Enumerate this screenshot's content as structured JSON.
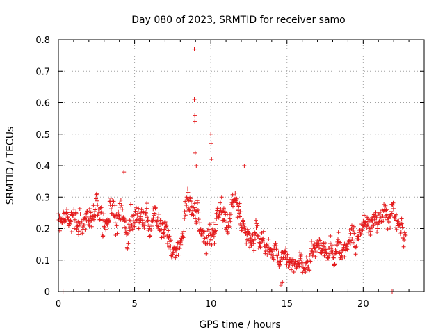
{
  "chart_data": {
    "type": "scatter",
    "title": "Day 080 of 2023, SRMTID for receiver samo",
    "xlabel": "GPS time / hours",
    "ylabel": "SRMTID / TECUs",
    "xlim": [
      0,
      24
    ],
    "ylim": [
      0,
      0.8
    ],
    "xticks": [
      0,
      5,
      10,
      15,
      20
    ],
    "yticks": [
      0,
      0.1,
      0.2,
      0.3,
      0.4,
      0.5,
      0.6,
      0.7,
      0.8
    ],
    "grid": true,
    "marker": "+",
    "color": "#e41a1c",
    "series": [
      {
        "name": "SRMTID",
        "trend": [
          [
            0.0,
            0.22,
            0.05
          ],
          [
            0.5,
            0.24,
            0.05
          ],
          [
            1.0,
            0.25,
            0.05
          ],
          [
            1.5,
            0.22,
            0.06
          ],
          [
            2.0,
            0.2,
            0.05
          ],
          [
            2.5,
            0.24,
            0.06
          ],
          [
            3.0,
            0.22,
            0.07
          ],
          [
            3.5,
            0.26,
            0.06
          ],
          [
            4.0,
            0.27,
            0.06
          ],
          [
            4.5,
            0.18,
            0.07
          ],
          [
            5.0,
            0.26,
            0.05
          ],
          [
            5.5,
            0.22,
            0.06
          ],
          [
            6.0,
            0.21,
            0.05
          ],
          [
            6.5,
            0.24,
            0.06
          ],
          [
            7.0,
            0.17,
            0.06
          ],
          [
            7.5,
            0.15,
            0.05
          ],
          [
            8.0,
            0.14,
            0.05
          ],
          [
            8.5,
            0.26,
            0.06
          ],
          [
            9.0,
            0.25,
            0.07
          ],
          [
            9.5,
            0.15,
            0.05
          ],
          [
            10.0,
            0.2,
            0.07
          ],
          [
            10.5,
            0.24,
            0.06
          ],
          [
            11.0,
            0.19,
            0.06
          ],
          [
            11.5,
            0.24,
            0.05
          ],
          [
            12.0,
            0.22,
            0.05
          ],
          [
            12.5,
            0.2,
            0.05
          ],
          [
            13.0,
            0.16,
            0.05
          ],
          [
            13.5,
            0.15,
            0.05
          ],
          [
            14.0,
            0.13,
            0.04
          ],
          [
            14.5,
            0.09,
            0.04
          ],
          [
            15.0,
            0.09,
            0.04
          ],
          [
            15.5,
            0.1,
            0.04
          ],
          [
            16.0,
            0.09,
            0.04
          ],
          [
            16.5,
            0.09,
            0.04
          ],
          [
            17.0,
            0.14,
            0.04
          ],
          [
            17.5,
            0.14,
            0.05
          ],
          [
            18.0,
            0.12,
            0.04
          ],
          [
            18.5,
            0.14,
            0.05
          ],
          [
            19.0,
            0.16,
            0.05
          ],
          [
            19.5,
            0.17,
            0.05
          ],
          [
            20.0,
            0.21,
            0.05
          ],
          [
            20.5,
            0.22,
            0.05
          ],
          [
            21.0,
            0.22,
            0.05
          ],
          [
            21.5,
            0.25,
            0.05
          ],
          [
            22.0,
            0.26,
            0.05
          ],
          [
            22.5,
            0.19,
            0.05
          ],
          [
            22.8,
            0.2,
            0.05
          ]
        ],
        "points_per_hour": 40,
        "outliers": [
          [
            8.92,
            0.77
          ],
          [
            8.92,
            0.61
          ],
          [
            8.95,
            0.56
          ],
          [
            8.95,
            0.54
          ],
          [
            8.98,
            0.44
          ],
          [
            10.0,
            0.5
          ],
          [
            10.02,
            0.47
          ],
          [
            10.05,
            0.42
          ],
          [
            9.05,
            0.4
          ],
          [
            4.3,
            0.38
          ],
          [
            12.2,
            0.4
          ],
          [
            14.6,
            0.02
          ],
          [
            14.7,
            0.03
          ],
          [
            0.3,
            0.0
          ],
          [
            21.9,
            0.0
          ]
        ]
      }
    ]
  }
}
